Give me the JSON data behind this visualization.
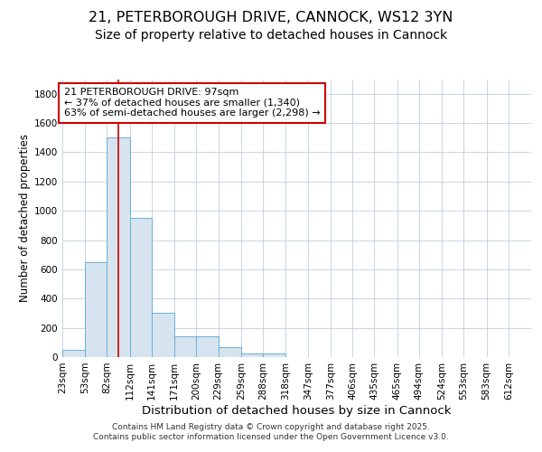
{
  "title_line1": "21, PETERBOROUGH DRIVE, CANNOCK, WS12 3YN",
  "title_line2": "Size of property relative to detached houses in Cannock",
  "xlabel": "Distribution of detached houses by size in Cannock",
  "ylabel": "Number of detached properties",
  "bar_bins": [
    23,
    53,
    82,
    112,
    141,
    171,
    200,
    229,
    259,
    288,
    318,
    347,
    377,
    406,
    435,
    465,
    494,
    524,
    553,
    583,
    612
  ],
  "bar_heights": [
    50,
    650,
    1500,
    950,
    300,
    140,
    140,
    70,
    25,
    25,
    0,
    0,
    0,
    0,
    0,
    0,
    0,
    0,
    0,
    0
  ],
  "bar_color": "#d6e4f0",
  "bar_edge_color": "#6aaed6",
  "property_size": 97,
  "red_line_color": "#cc0000",
  "annotation_text": "21 PETERBOROUGH DRIVE: 97sqm\n← 37% of detached houses are smaller (1,340)\n63% of semi-detached houses are larger (2,298) →",
  "annotation_box_color": "#ffffff",
  "annotation_box_edge_color": "#cc0000",
  "ylim": [
    0,
    1900
  ],
  "yticks": [
    0,
    200,
    400,
    600,
    800,
    1000,
    1200,
    1400,
    1600,
    1800
  ],
  "bg_color": "#ffffff",
  "plot_bg_color": "#ffffff",
  "footer_text": "Contains HM Land Registry data © Crown copyright and database right 2025.\nContains public sector information licensed under the Open Government Licence v3.0.",
  "title_fontsize": 11.5,
  "subtitle_fontsize": 10,
  "tick_fontsize": 7.5,
  "xlabel_fontsize": 9.5,
  "ylabel_fontsize": 8.5,
  "annot_fontsize": 8,
  "footer_fontsize": 6.5
}
